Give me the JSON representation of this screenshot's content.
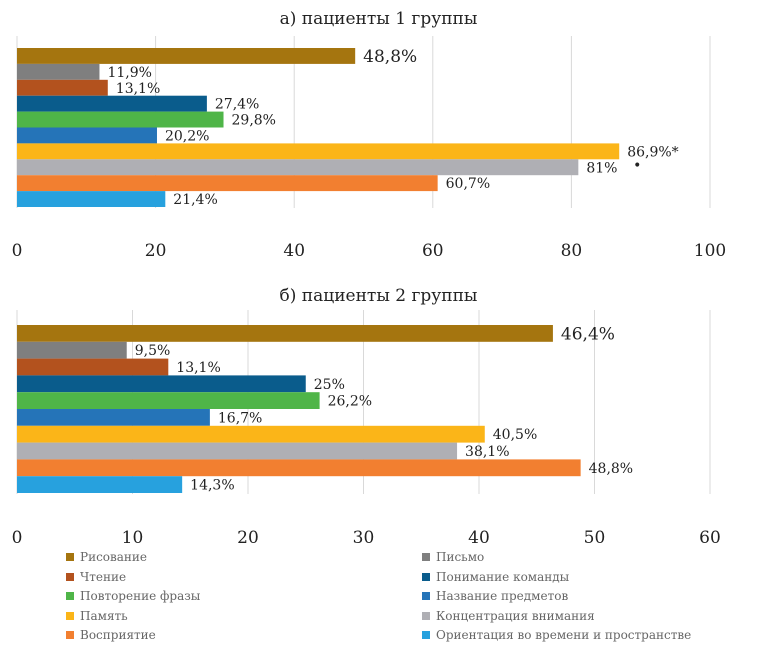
{
  "chart_data": [
    {
      "type": "bar",
      "orientation": "horizontal",
      "title": "а) пациенты 1 группы",
      "xlim": [
        0,
        100
      ],
      "xticks": [
        "0",
        "20",
        "40",
        "60",
        "80",
        "100"
      ],
      "grid": "vertical",
      "bars": [
        {
          "category": "Рисование",
          "value": 48.8,
          "label": "48,8%"
        },
        {
          "category": "Письмо",
          "value": 11.9,
          "label": "11,9%"
        },
        {
          "category": "Чтение",
          "value": 13.1,
          "label": "13,1%"
        },
        {
          "category": "Понимание команды",
          "value": 27.4,
          "label": "27,4%"
        },
        {
          "category": "Повторение фразы",
          "value": 29.8,
          "label": "29,8%"
        },
        {
          "category": "Название предметов",
          "value": 20.2,
          "label": "20,2%"
        },
        {
          "category": "Память",
          "value": 86.9,
          "label": "86,9%*"
        },
        {
          "category": "Концентрация внимания",
          "value": 81,
          "label": "81%"
        },
        {
          "category": "Восприятие",
          "value": 60.7,
          "label": "60,7%"
        },
        {
          "category": "Ориентация во времени и пространстве",
          "value": 21.4,
          "label": "21,4%"
        }
      ],
      "annotations": [
        "•"
      ]
    },
    {
      "type": "bar",
      "orientation": "horizontal",
      "title": "б) пациенты 2 группы",
      "xlim": [
        0,
        60
      ],
      "xticks": [
        "0",
        "10",
        "20",
        "30",
        "40",
        "50",
        "60"
      ],
      "grid": "vertical",
      "bars": [
        {
          "category": "Рисование",
          "value": 46.4,
          "label": "46,4%"
        },
        {
          "category": "Письмо",
          "value": 9.5,
          "label": "9,5%"
        },
        {
          "category": "Чтение",
          "value": 13.1,
          "label": "13,1%"
        },
        {
          "category": "Понимание команды",
          "value": 25,
          "label": "25%"
        },
        {
          "category": "Повторение фразы",
          "value": 26.2,
          "label": "26,2%"
        },
        {
          "category": "Название предметов",
          "value": 16.7,
          "label": "16,7%"
        },
        {
          "category": "Память",
          "value": 40.5,
          "label": "40,5%"
        },
        {
          "category": "Концентрация внимания",
          "value": 38.1,
          "label": "38,1%"
        },
        {
          "category": "Восприятие",
          "value": 48.8,
          "label": "48,8%"
        },
        {
          "category": "Ориентация во времени и пространстве",
          "value": 14.3,
          "label": "14,3%"
        }
      ]
    }
  ],
  "legend": {
    "placement": "bottom",
    "items": [
      {
        "label": "Рисование",
        "color": "#A5750F"
      },
      {
        "label": "Письмо",
        "color": "#7F7F7F"
      },
      {
        "label": "Чтение",
        "color": "#B3521E"
      },
      {
        "label": "Понимание команды",
        "color": "#0A5C8C"
      },
      {
        "label": "Повторение фразы",
        "color": "#4FB548"
      },
      {
        "label": "Название предметов",
        "color": "#2574B8"
      },
      {
        "label": "Память",
        "color": "#FBB518"
      },
      {
        "label": "Концентрация внимания",
        "color": "#AFAFB4"
      },
      {
        "label": "Восприятие",
        "color": "#F27F30"
      },
      {
        "label": "Ориентация во времени и пространстве",
        "color": "#27A1DE"
      }
    ]
  }
}
